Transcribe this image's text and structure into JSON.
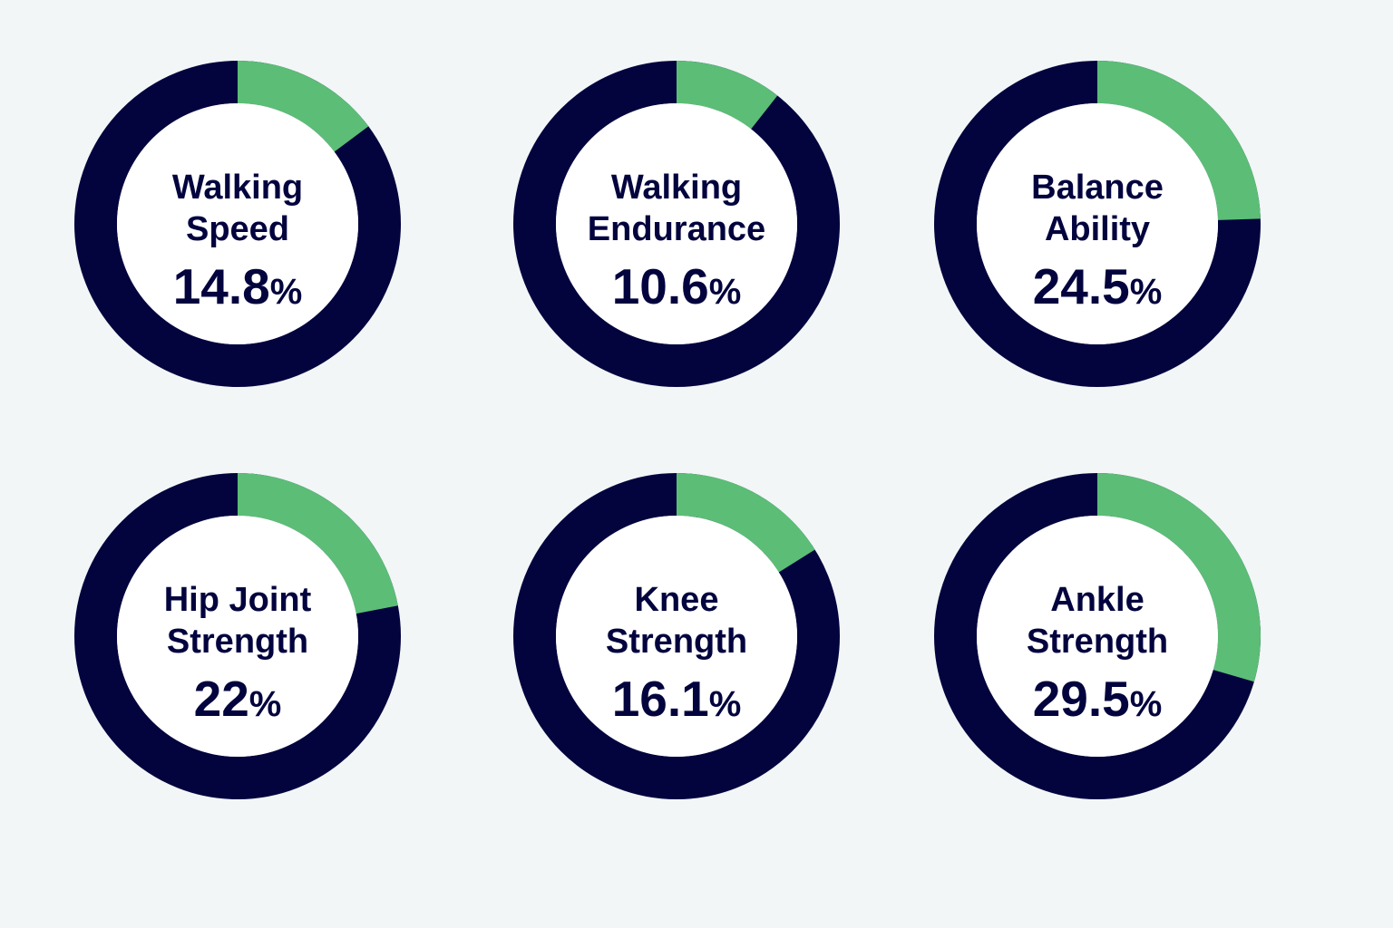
{
  "colors": {
    "background": "#f2f6f7",
    "track": "#03043e",
    "fill": "#5cbd77",
    "text": "#03043e",
    "inner": "#ffffff"
  },
  "chart_data": [
    {
      "type": "pie",
      "title_lines": [
        "Walking",
        "Speed"
      ],
      "value": 14.8,
      "value_label": "14.8",
      "unit": "%"
    },
    {
      "type": "pie",
      "title_lines": [
        "Walking",
        "Endurance"
      ],
      "value": 10.6,
      "value_label": "10.6",
      "unit": "%"
    },
    {
      "type": "pie",
      "title_lines": [
        "Balance",
        "Ability"
      ],
      "value": 24.5,
      "value_label": "24.5",
      "unit": "%"
    },
    {
      "type": "pie",
      "title_lines": [
        "Hip Joint",
        "Strength"
      ],
      "value": 22,
      "value_label": "22",
      "unit": "%"
    },
    {
      "type": "pie",
      "title_lines": [
        "Knee",
        "Strength"
      ],
      "value": 16.1,
      "value_label": "16.1",
      "unit": "%"
    },
    {
      "type": "pie",
      "title_lines": [
        "Ankle",
        "Strength"
      ],
      "value": 29.5,
      "value_label": "29.5",
      "unit": "%"
    }
  ]
}
